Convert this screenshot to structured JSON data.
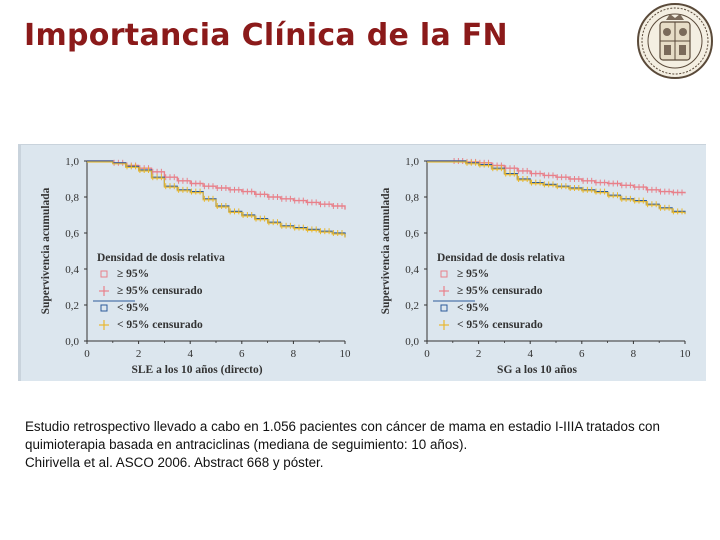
{
  "title": "Importancia Clínica de la FN",
  "caption": {
    "line1": "Estudio retrospectivo llevado a cabo en 1.056 pacientes con cáncer de mama en estadio I-IIIA tratados con",
    "line2": "quimioterapia basada en antraciclinas (mediana de seguimiento: 10 años).",
    "line3": "Chirivella et al. ASCO 2006. Abstract 668 y póster."
  },
  "colors": {
    "title": "#8b1a1a",
    "series_ge95": "#e8808a",
    "series_lt95": "#e8b830",
    "series_lt95_line": "#2b5a9a",
    "panel_bg": "#dce6ee"
  },
  "logo": "university-seal-icon",
  "chart_data": [
    {
      "type": "line",
      "xlabel": "SLE a los 10 años (directo)",
      "ylabel": "Supervivencia acumulada",
      "xlim": [
        0,
        10
      ],
      "ylim": [
        0,
        1
      ],
      "xticks": [
        "0",
        "2",
        "4",
        "6",
        "8",
        "10"
      ],
      "yticks": [
        "0,0",
        "0,2",
        "0,4",
        "0,6",
        "0,8",
        "1,0"
      ],
      "legend_title": "Densidad de dosis relativa",
      "legend": [
        "≥ 95%",
        "≥ 95% censurado",
        "< 95%",
        "< 95% censurado"
      ],
      "series": [
        {
          "name": "≥ 95%",
          "x": [
            0,
            1,
            1.5,
            2,
            2.5,
            3,
            3.5,
            4,
            4.5,
            5,
            5.5,
            6,
            6.5,
            7,
            7.5,
            8,
            8.5,
            9,
            9.5,
            10
          ],
          "y": [
            1.0,
            0.99,
            0.975,
            0.96,
            0.94,
            0.91,
            0.89,
            0.875,
            0.86,
            0.85,
            0.84,
            0.83,
            0.815,
            0.8,
            0.79,
            0.78,
            0.77,
            0.76,
            0.75,
            0.73
          ]
        },
        {
          "name": "< 95%",
          "x": [
            0,
            1,
            1.5,
            2,
            2.5,
            3,
            3.5,
            4,
            4.5,
            5,
            5.5,
            6,
            6.5,
            7,
            7.5,
            8,
            8.5,
            9,
            9.5,
            10
          ],
          "y": [
            1.0,
            0.99,
            0.97,
            0.95,
            0.91,
            0.86,
            0.84,
            0.83,
            0.79,
            0.75,
            0.72,
            0.7,
            0.68,
            0.66,
            0.64,
            0.63,
            0.62,
            0.61,
            0.6,
            0.58
          ]
        }
      ]
    },
    {
      "type": "line",
      "xlabel": "SG a los 10 años",
      "ylabel": "Supervivencia acumulada",
      "xlim": [
        0,
        10
      ],
      "ylim": [
        0,
        1
      ],
      "xticks": [
        "0",
        "2",
        "4",
        "6",
        "8",
        "10"
      ],
      "yticks": [
        "0,0",
        "0,2",
        "0,4",
        "0,6",
        "0,8",
        "1,0"
      ],
      "legend_title": "Densidad de dosis relativa",
      "legend": [
        "≥ 95%",
        "≥ 95% censurado",
        "< 95%",
        "< 95% censurado"
      ],
      "series": [
        {
          "name": "≥ 95%",
          "x": [
            0,
            1,
            1.5,
            2,
            2.5,
            3,
            3.5,
            4,
            4.5,
            5,
            5.5,
            6,
            6.5,
            7,
            7.5,
            8,
            8.5,
            9,
            9.5,
            10
          ],
          "y": [
            1.0,
            1.0,
            0.995,
            0.99,
            0.975,
            0.96,
            0.945,
            0.93,
            0.92,
            0.91,
            0.9,
            0.89,
            0.88,
            0.875,
            0.865,
            0.855,
            0.84,
            0.83,
            0.825,
            0.82
          ]
        },
        {
          "name": "< 95%",
          "x": [
            0,
            1,
            1.5,
            2,
            2.5,
            3,
            3.5,
            4,
            4.5,
            5,
            5.5,
            6,
            6.5,
            7,
            7.5,
            8,
            8.5,
            9,
            9.5,
            10
          ],
          "y": [
            1.0,
            1.0,
            0.99,
            0.98,
            0.96,
            0.93,
            0.9,
            0.88,
            0.87,
            0.86,
            0.85,
            0.84,
            0.83,
            0.81,
            0.79,
            0.78,
            0.76,
            0.74,
            0.72,
            0.71
          ]
        }
      ]
    }
  ]
}
